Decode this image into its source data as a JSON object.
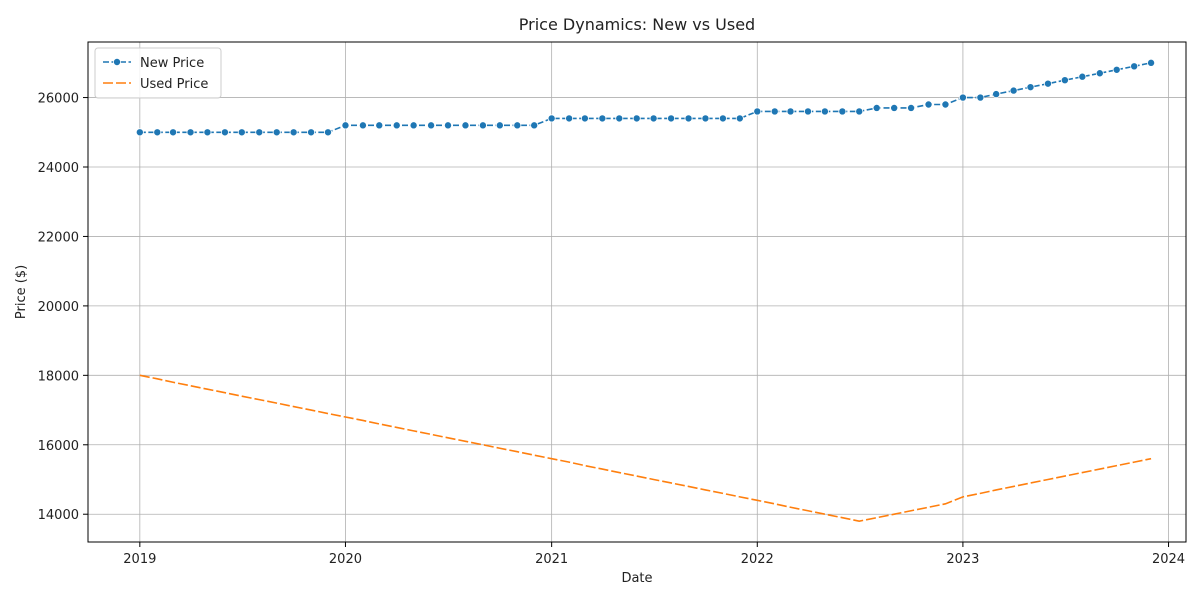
{
  "chart_data": {
    "type": "line",
    "title": "Price Dynamics: New vs Used",
    "xlabel": "Date",
    "ylabel": "Price ($)",
    "xlim": [
      "2018-10-01",
      "2024-02-01"
    ],
    "ylim": [
      13200,
      27600
    ],
    "x_ticks": [
      "2019",
      "2020",
      "2021",
      "2022",
      "2023",
      "2024"
    ],
    "y_ticks": [
      14000,
      16000,
      18000,
      20000,
      22000,
      24000,
      26000
    ],
    "grid": true,
    "legend": "top-left",
    "x": [
      "2019-01",
      "2019-02",
      "2019-03",
      "2019-04",
      "2019-05",
      "2019-06",
      "2019-07",
      "2019-08",
      "2019-09",
      "2019-10",
      "2019-11",
      "2019-12",
      "2020-01",
      "2020-02",
      "2020-03",
      "2020-04",
      "2020-05",
      "2020-06",
      "2020-07",
      "2020-08",
      "2020-09",
      "2020-10",
      "2020-11",
      "2020-12",
      "2021-01",
      "2021-02",
      "2021-03",
      "2021-04",
      "2021-05",
      "2021-06",
      "2021-07",
      "2021-08",
      "2021-09",
      "2021-10",
      "2021-11",
      "2021-12",
      "2022-01",
      "2022-02",
      "2022-03",
      "2022-04",
      "2022-05",
      "2022-06",
      "2022-07",
      "2022-08",
      "2022-09",
      "2022-10",
      "2022-11",
      "2022-12",
      "2023-01",
      "2023-02",
      "2023-03",
      "2023-04",
      "2023-05",
      "2023-06",
      "2023-07",
      "2023-08",
      "2023-09",
      "2023-10",
      "2023-11",
      "2023-12"
    ],
    "series": [
      {
        "name": "New Price",
        "color": "#1f77b4",
        "marker": "circle",
        "line_style": "dashed",
        "values": [
          25000,
          25000,
          25000,
          25000,
          25000,
          25000,
          25000,
          25000,
          25000,
          25000,
          25000,
          25000,
          25200,
          25200,
          25200,
          25200,
          25200,
          25200,
          25200,
          25200,
          25200,
          25200,
          25200,
          25200,
          25400,
          25400,
          25400,
          25400,
          25400,
          25400,
          25400,
          25400,
          25400,
          25400,
          25400,
          25400,
          25600,
          25600,
          25600,
          25600,
          25600,
          25600,
          25600,
          25700,
          25700,
          25700,
          25800,
          25800,
          26000,
          26000,
          26100,
          26200,
          26300,
          26400,
          26500,
          26600,
          26700,
          26800,
          26900,
          27000
        ]
      },
      {
        "name": "Used Price",
        "color": "#ff7f0e",
        "marker": "none",
        "line_style": "dashed",
        "values": [
          18000,
          17900,
          17800,
          17700,
          17600,
          17500,
          17400,
          17300,
          17200,
          17100,
          17000,
          16900,
          16800,
          16700,
          16600,
          16500,
          16400,
          16300,
          16200,
          16100,
          16000,
          15900,
          15800,
          15700,
          15600,
          15500,
          15400,
          15300,
          15200,
          15100,
          15000,
          14900,
          14800,
          14700,
          14600,
          14500,
          14400,
          14300,
          14200,
          14100,
          14000,
          13900,
          13800,
          13900,
          14000,
          14100,
          14200,
          14300,
          14500,
          14600,
          14700,
          14800,
          14900,
          15000,
          15100,
          15200,
          15300,
          15400,
          15500,
          15600
        ]
      }
    ]
  }
}
